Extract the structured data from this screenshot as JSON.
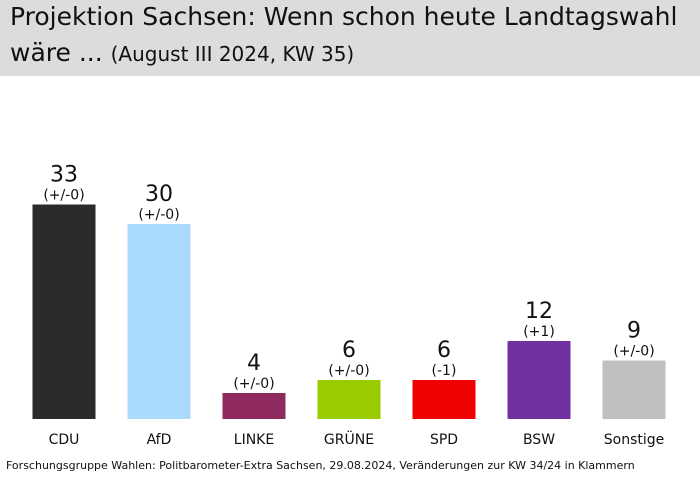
{
  "chart_data": {
    "type": "bar",
    "title_line1": "Projektion Sachsen: Wenn schon heute Landtagswahl",
    "title_line2_main": "wäre ...",
    "title_line2_sub": "(August III 2024, KW 35)",
    "categories": [
      "CDU",
      "AfD",
      "LINKE",
      "GRÜNE",
      "SPD",
      "BSW",
      "Sonstige"
    ],
    "values": [
      33,
      30,
      4,
      6,
      6,
      12,
      9
    ],
    "changes": [
      "(+/-0)",
      "(+/-0)",
      "(+/-0)",
      "(+/-0)",
      "(-1)",
      "(+1)",
      "(+/-0)"
    ],
    "colors": [
      "#2b2b2b",
      "#a9d9fb",
      "#8e2a5e",
      "#99cc00",
      "#f00000",
      "#7030a0",
      "#bfbfbf"
    ],
    "ylim": [
      0,
      35
    ],
    "grid": false,
    "footer": "Forschungsgruppe Wahlen: Politbarometer-Extra Sachsen, 29.08.2024, Veränderungen zur KW 34/24 in Klammern"
  }
}
